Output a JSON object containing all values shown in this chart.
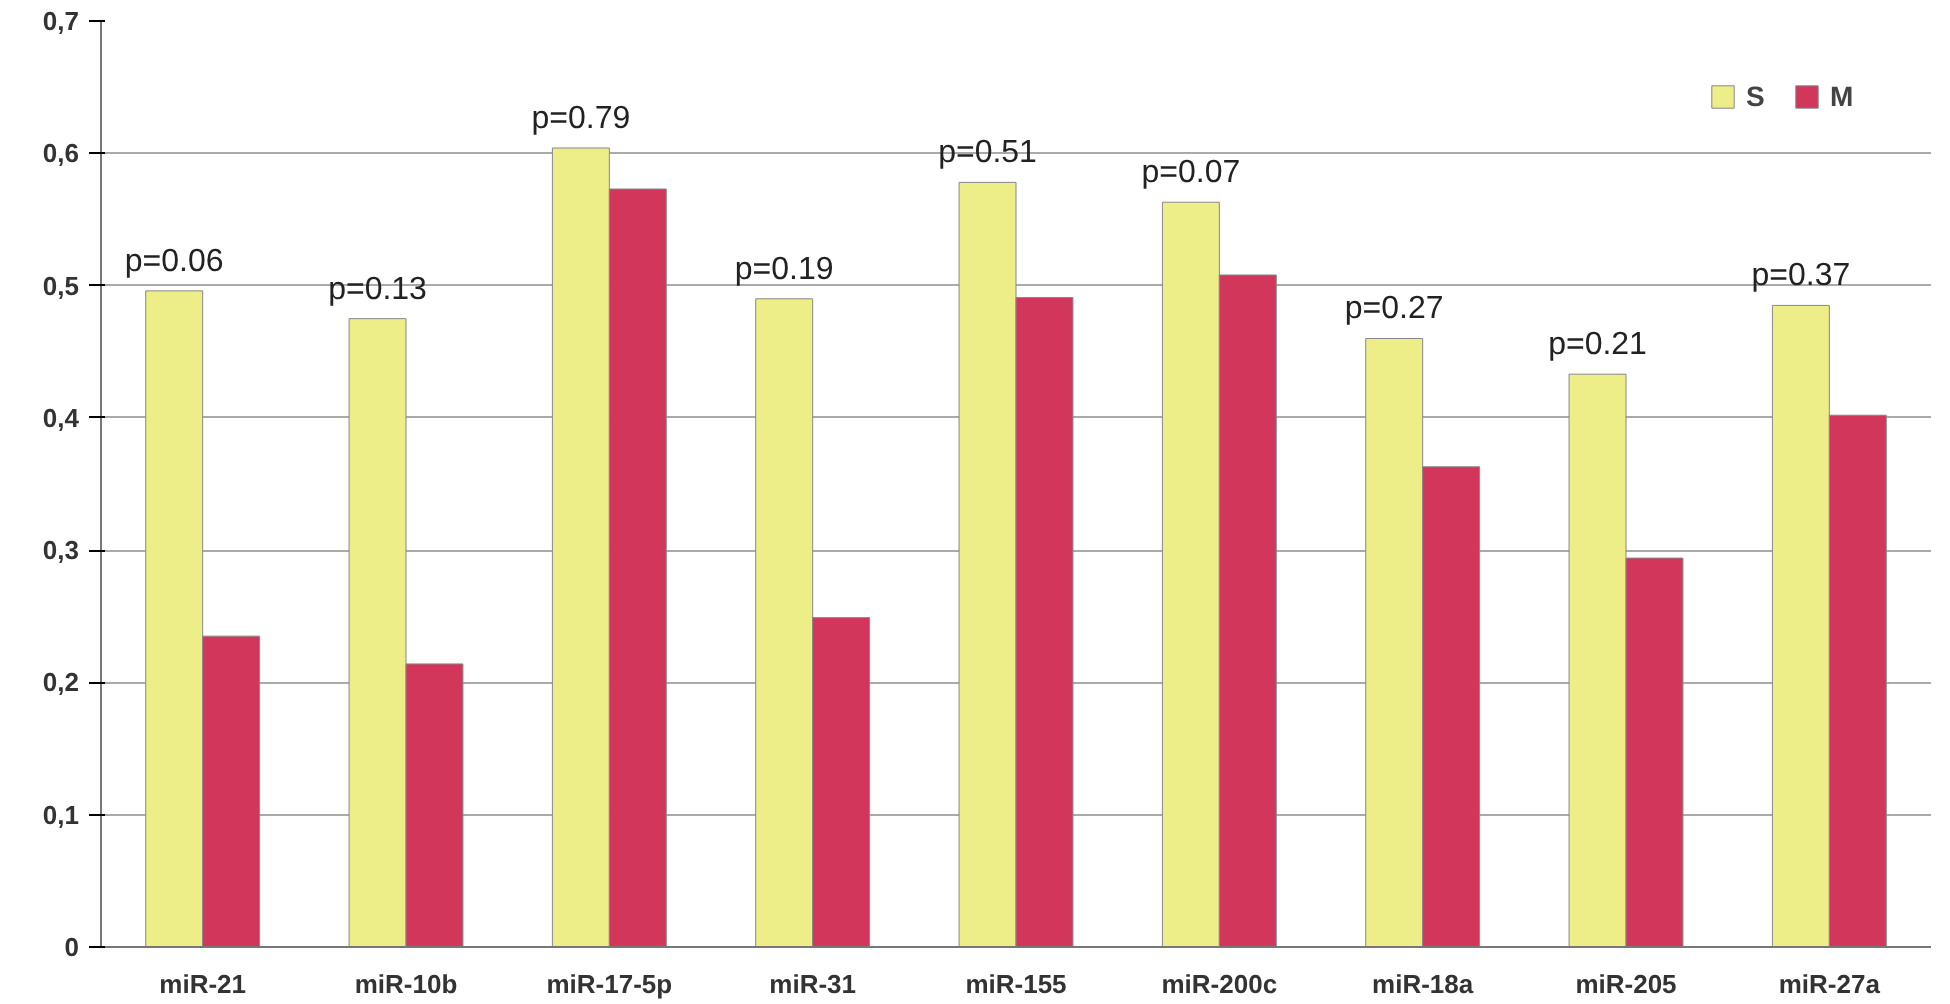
{
  "chart_data": {
    "type": "bar",
    "categories": [
      "miR-21",
      "miR-10b",
      "miR-17-5p",
      "miR-31",
      "miR-155",
      "miR-200c",
      "miR-18a",
      "miR-205",
      "miR-27a"
    ],
    "series": [
      {
        "name": "S",
        "color": "#eeee88",
        "values": [
          0.496,
          0.475,
          0.604,
          0.49,
          0.578,
          0.563,
          0.46,
          0.433,
          0.485
        ]
      },
      {
        "name": "M",
        "color": "#d2365a",
        "values": [
          0.235,
          0.214,
          0.573,
          0.249,
          0.491,
          0.508,
          0.363,
          0.294,
          0.402
        ]
      }
    ],
    "ylim": [
      0,
      0.7
    ],
    "yticks": [
      {
        "value": 0,
        "label": "0"
      },
      {
        "value": 0.1,
        "label": "0,1"
      },
      {
        "value": 0.2,
        "label": "0,2"
      },
      {
        "value": 0.3,
        "label": "0,3"
      },
      {
        "value": 0.4,
        "label": "0,4"
      },
      {
        "value": 0.5,
        "label": "0,5"
      },
      {
        "value": 0.6,
        "label": "0,6"
      },
      {
        "value": 0.7,
        "label": "0,7"
      }
    ],
    "annotations": [
      {
        "text": "p=0.06",
        "x": "miR-21",
        "y": 0.496
      },
      {
        "text": "p=0.13",
        "x": "miR-10b",
        "y": 0.475
      },
      {
        "text": "p=0.79",
        "x": "miR-17-5p",
        "y": 0.604
      },
      {
        "text": "p=0.19",
        "x": "miR-31",
        "y": 0.49
      },
      {
        "text": "p=0.51",
        "x": "miR-155",
        "y": 0.578
      },
      {
        "text": "p=0.07",
        "x": "miR-200c",
        "y": 0.563
      },
      {
        "text": "p=0.27",
        "x": "miR-18a",
        "y": 0.46
      },
      {
        "text": "p=0.21",
        "x": "miR-205",
        "y": 0.433
      },
      {
        "text": "p=0.37",
        "x": "miR-27a",
        "y": 0.485
      }
    ],
    "grid": "y",
    "legend": "top right"
  }
}
